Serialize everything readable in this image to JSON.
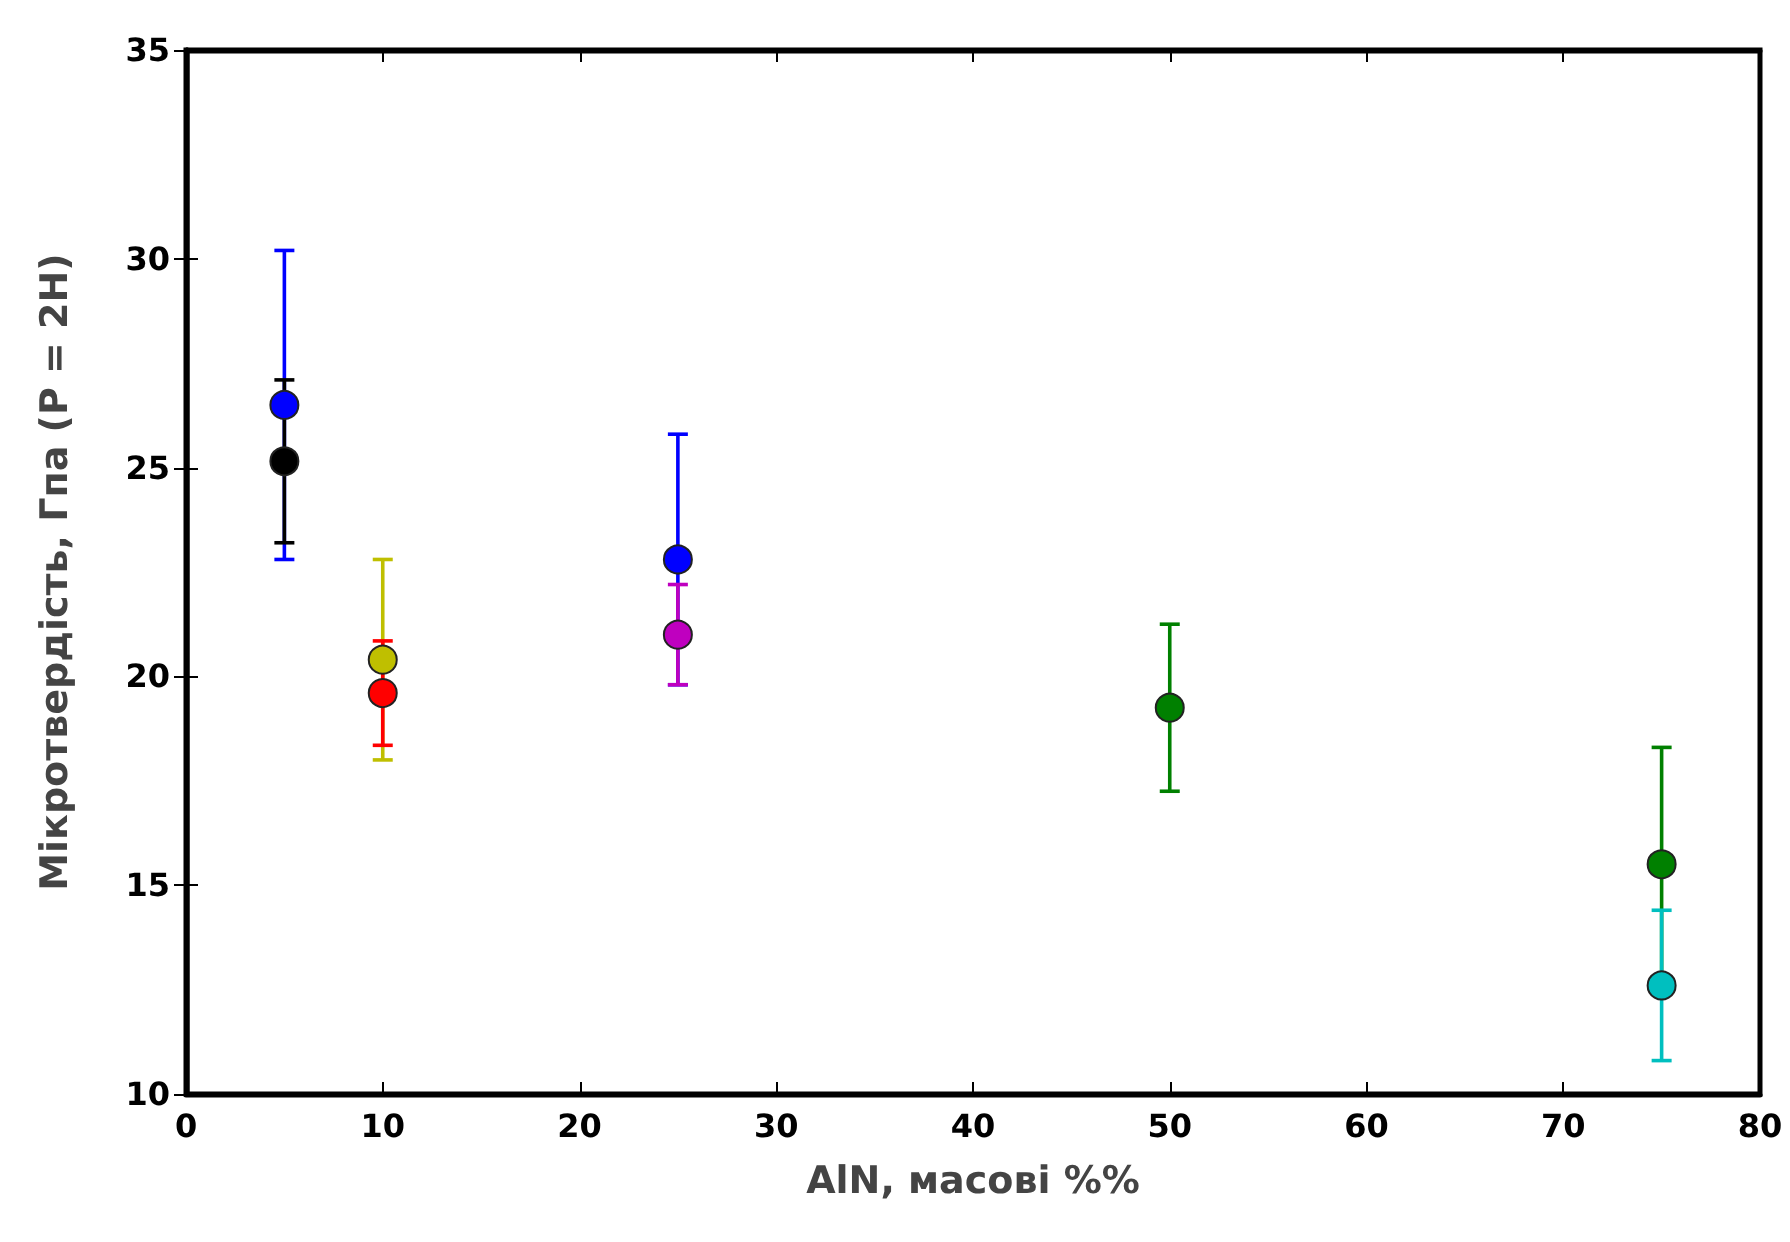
{
  "chart_data": {
    "type": "scatter",
    "xlabel": "AlN, масові %%",
    "ylabel": "Мікротвердість, Гпа (P = 2H)",
    "xlim": [
      0,
      80
    ],
    "xticks": [
      0,
      10,
      20,
      30,
      40,
      50,
      60,
      70,
      80
    ],
    "ylim": [
      10,
      35
    ],
    "yticks": [
      10,
      15,
      20,
      25,
      30,
      35
    ],
    "grid": false,
    "marker": "circle",
    "series": [
      {
        "color": "#0000ff",
        "x": [
          5
        ],
        "values": [
          26.5
        ],
        "errors": [
          3.7
        ]
      },
      {
        "color": "#000000",
        "x": [
          5
        ],
        "values": [
          25.15
        ],
        "errors": [
          1.95
        ]
      },
      {
        "color": "#bfbf00",
        "x": [
          10
        ],
        "values": [
          20.4
        ],
        "errors": [
          2.4
        ]
      },
      {
        "color": "#ff0000",
        "x": [
          10
        ],
        "values": [
          19.6
        ],
        "errors": [
          1.25
        ]
      },
      {
        "color": "#0000ff",
        "x": [
          25
        ],
        "values": [
          22.8
        ],
        "errors": [
          3.0
        ]
      },
      {
        "color": "#bf00bf",
        "x": [
          25
        ],
        "values": [
          21.0
        ],
        "errors": [
          1.2
        ]
      },
      {
        "color": "#008000",
        "x": [
          50
        ],
        "values": [
          19.25
        ],
        "errors": [
          2.0
        ]
      },
      {
        "color": "#008000",
        "x": [
          75
        ],
        "values": [
          15.5
        ],
        "errors": [
          2.8
        ]
      },
      {
        "color": "#00bfbf",
        "x": [
          75
        ],
        "values": [
          12.6
        ],
        "errors": [
          1.8
        ]
      }
    ]
  }
}
